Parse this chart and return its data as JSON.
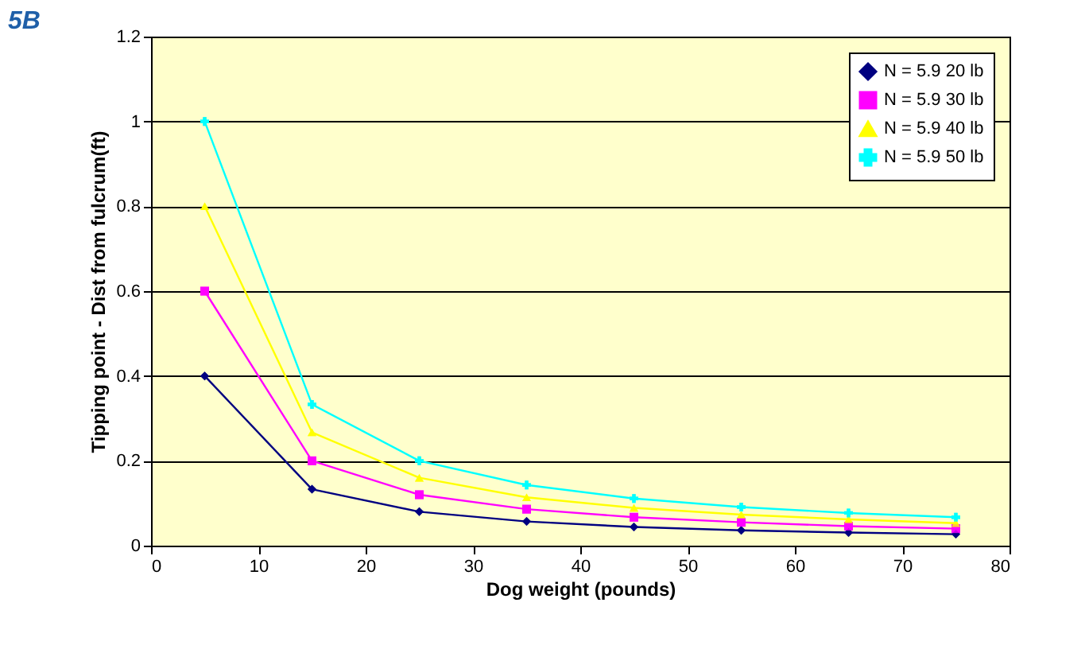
{
  "chart_data": {
    "type": "line",
    "annotations": [
      "5B"
    ],
    "xlabel": "Dog weight (pounds)",
    "ylabel": "Tipping point - Dist from fulcrum(ft)",
    "x": [
      5,
      15,
      25,
      35,
      45,
      55,
      65,
      75
    ],
    "series": [
      {
        "name": "N = 5.9 20 lb",
        "color": "#000080",
        "marker": "diamond",
        "values": [
          0.4,
          0.133,
          0.08,
          0.057,
          0.044,
          0.036,
          0.031,
          0.027
        ]
      },
      {
        "name": "N = 5.9 30 lb",
        "color": "#ff00ff",
        "marker": "square",
        "values": [
          0.6,
          0.2,
          0.12,
          0.086,
          0.067,
          0.055,
          0.046,
          0.04
        ]
      },
      {
        "name": "N = 5.9 40 lb",
        "color": "#ffff00",
        "marker": "triangle",
        "values": [
          0.8,
          0.267,
          0.16,
          0.114,
          0.089,
          0.073,
          0.062,
          0.053
        ]
      },
      {
        "name": "N = 5.9 50 lb",
        "color": "#00ffff",
        "marker": "cross",
        "values": [
          1.0,
          0.333,
          0.2,
          0.143,
          0.111,
          0.091,
          0.077,
          0.067
        ]
      }
    ],
    "xlim": [
      0,
      80
    ],
    "xticks": [
      0,
      10,
      20,
      30,
      40,
      50,
      60,
      70,
      80
    ],
    "ylim": [
      0,
      1.2
    ],
    "yticks": [
      0,
      0.2,
      0.4,
      0.6,
      0.8,
      1,
      1.2
    ],
    "grid": "y",
    "legend": "top right",
    "line_style": "solid"
  }
}
